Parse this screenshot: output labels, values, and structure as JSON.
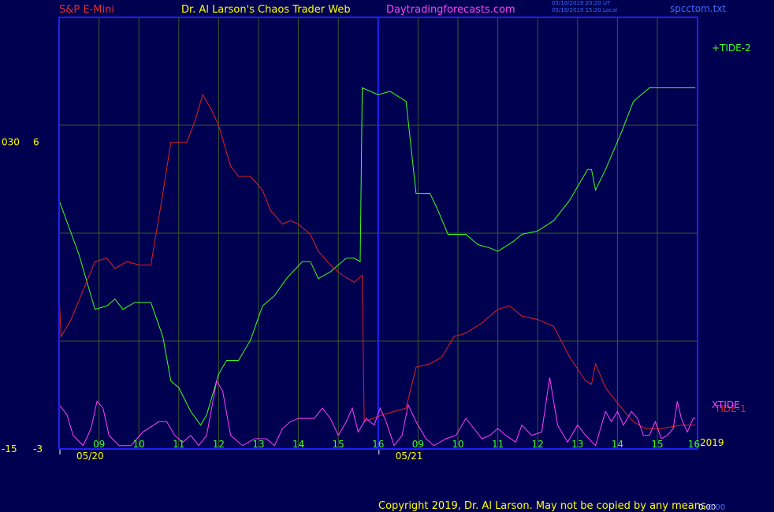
{
  "header": {
    "symbol": "S&P E-Mini",
    "site_title": "Dr. Al Larson's Chaos Trader Web",
    "site_url": "Daytradingforecasts.com",
    "timestamp_ut": "05/18/2019 20:20 UT",
    "timestamp_local": "05/18/2019 15:20 Local",
    "file_name": "spcctom.txt"
  },
  "footer": {
    "copyright": "Copyright 2019, Dr. Al Larson. May not be copied by any means",
    "tag_white": "0.00",
    "tag_blue": "0.00"
  },
  "colors": {
    "background": "#000050",
    "frame": "#2020ff",
    "grid": "#3a5a28",
    "symbol_text": "#e03030",
    "site_title_text": "#ffff00",
    "site_url_text": "#ff40ff",
    "tide1": "#e02020",
    "tide2": "#40ff20",
    "xtide": "#ff40ff",
    "hour_labels": "#40ff20",
    "yellow_labels": "#ffff00"
  },
  "chart_data": {
    "type": "line",
    "y_axis_left_labels": [
      {
        "outer": "030",
        "inner": "6",
        "value": 6
      },
      {
        "outer": "-15",
        "inner": "-3",
        "value": -3
      }
    ],
    "ylim": [
      -3,
      9.67
    ],
    "x_hour_labels": [
      "09",
      "10",
      "11",
      "12",
      "13",
      "14",
      "15",
      "16",
      "09",
      "10",
      "11",
      "12",
      "13",
      "14",
      "15",
      "16"
    ],
    "date_labels": [
      {
        "label": "05/20",
        "hour_index": 0
      },
      {
        "label": "05/21",
        "hour_index": 8
      }
    ],
    "year_label": "2019",
    "session_break_hour_index": 8,
    "series": [
      {
        "name": "+TIDE-2",
        "key": "tide2",
        "points": [
          [
            0,
            4.3
          ],
          [
            0.5,
            2.7
          ],
          [
            0.9,
            1.1
          ],
          [
            1.2,
            1.2
          ],
          [
            1.4,
            1.4
          ],
          [
            1.6,
            1.1
          ],
          [
            1.9,
            1.3
          ],
          [
            2.3,
            1.3
          ],
          [
            2.6,
            0.3
          ],
          [
            2.8,
            -1
          ],
          [
            3.0,
            -1.2
          ],
          [
            3.3,
            -1.9
          ],
          [
            3.55,
            -2.3
          ],
          [
            3.7,
            -2.0
          ],
          [
            4.0,
            -0.8
          ],
          [
            4.2,
            -0.4
          ],
          [
            4.5,
            -0.4
          ],
          [
            4.8,
            0.2
          ],
          [
            5.1,
            1.2
          ],
          [
            5.4,
            1.5
          ],
          [
            5.7,
            2.0
          ],
          [
            6.1,
            2.5
          ],
          [
            6.3,
            2.5
          ],
          [
            6.5,
            2.0
          ],
          [
            6.8,
            2.2
          ],
          [
            7.2,
            2.6
          ],
          [
            7.4,
            2.6
          ],
          [
            7.55,
            2.5
          ],
          [
            7.6,
            7.6
          ],
          [
            8.0,
            7.4
          ],
          [
            8.3,
            7.5
          ],
          [
            8.7,
            7.2
          ],
          [
            8.95,
            4.5
          ],
          [
            9.3,
            4.5
          ],
          [
            9.5,
            4.0
          ],
          [
            9.75,
            3.3
          ],
          [
            10.2,
            3.3
          ],
          [
            10.5,
            3.0
          ],
          [
            10.8,
            2.9
          ],
          [
            11.0,
            2.8
          ],
          [
            11.4,
            3.1
          ],
          [
            11.6,
            3.3
          ],
          [
            12.0,
            3.4
          ],
          [
            12.4,
            3.7
          ],
          [
            12.8,
            4.3
          ],
          [
            13.25,
            5.2
          ],
          [
            13.35,
            5.2
          ],
          [
            13.45,
            4.6
          ],
          [
            13.7,
            5.2
          ],
          [
            14.1,
            6.3
          ],
          [
            14.4,
            7.2
          ],
          [
            14.8,
            7.6
          ],
          [
            15.2,
            7.6
          ],
          [
            15.6,
            7.6
          ],
          [
            15.95,
            7.6
          ]
        ]
      },
      {
        "name": "TIDE-1",
        "key": "tide1",
        "points": [
          [
            0,
            1.5
          ],
          [
            0.05,
            0.3
          ],
          [
            0.3,
            0.8
          ],
          [
            0.9,
            2.5
          ],
          [
            1.2,
            2.6
          ],
          [
            1.4,
            2.3
          ],
          [
            1.7,
            2.5
          ],
          [
            2.0,
            2.4
          ],
          [
            2.3,
            2.4
          ],
          [
            2.6,
            4.5
          ],
          [
            2.8,
            6.0
          ],
          [
            3.0,
            6.0
          ],
          [
            3.2,
            6.0
          ],
          [
            3.4,
            6.6
          ],
          [
            3.6,
            7.4
          ],
          [
            3.8,
            7.0
          ],
          [
            4.0,
            6.5
          ],
          [
            4.3,
            5.3
          ],
          [
            4.5,
            5.0
          ],
          [
            4.8,
            5.0
          ],
          [
            5.1,
            4.6
          ],
          [
            5.3,
            4.0
          ],
          [
            5.6,
            3.6
          ],
          [
            5.8,
            3.7
          ],
          [
            6.0,
            3.6
          ],
          [
            6.3,
            3.3
          ],
          [
            6.5,
            2.8
          ],
          [
            6.8,
            2.4
          ],
          [
            7.1,
            2.1
          ],
          [
            7.4,
            1.9
          ],
          [
            7.6,
            2.1
          ],
          [
            7.65,
            -2.2
          ],
          [
            8.1,
            -2.0
          ],
          [
            8.4,
            -1.9
          ],
          [
            8.7,
            -1.8
          ],
          [
            8.95,
            -0.6
          ],
          [
            9.3,
            -0.5
          ],
          [
            9.6,
            -0.3
          ],
          [
            9.9,
            0.3
          ],
          [
            10.2,
            0.4
          ],
          [
            10.6,
            0.7
          ],
          [
            11.0,
            1.1
          ],
          [
            11.3,
            1.2
          ],
          [
            11.6,
            0.9
          ],
          [
            12.0,
            0.8
          ],
          [
            12.4,
            0.6
          ],
          [
            12.8,
            -0.3
          ],
          [
            13.2,
            -1.0
          ],
          [
            13.35,
            -1.1
          ],
          [
            13.45,
            -0.5
          ],
          [
            13.7,
            -1.2
          ],
          [
            14.1,
            -1.8
          ],
          [
            14.4,
            -2.2
          ],
          [
            14.7,
            -2.4
          ],
          [
            15.1,
            -2.4
          ],
          [
            15.6,
            -2.3
          ],
          [
            15.95,
            -2.3
          ]
        ]
      },
      {
        "name": "XTIDE",
        "key": "xtide",
        "points": [
          [
            0,
            -1.7
          ],
          [
            0.2,
            -2.0
          ],
          [
            0.35,
            -2.6
          ],
          [
            0.6,
            -2.9
          ],
          [
            0.8,
            -2.4
          ],
          [
            0.95,
            -1.6
          ],
          [
            1.1,
            -1.8
          ],
          [
            1.25,
            -2.6
          ],
          [
            1.5,
            -2.9
          ],
          [
            1.8,
            -2.9
          ],
          [
            2.1,
            -2.5
          ],
          [
            2.5,
            -2.2
          ],
          [
            2.7,
            -2.2
          ],
          [
            2.9,
            -2.6
          ],
          [
            3.1,
            -2.8
          ],
          [
            3.3,
            -2.6
          ],
          [
            3.5,
            -2.9
          ],
          [
            3.7,
            -2.6
          ],
          [
            3.95,
            -1.0
          ],
          [
            4.1,
            -1.3
          ],
          [
            4.3,
            -2.6
          ],
          [
            4.6,
            -2.9
          ],
          [
            4.9,
            -2.7
          ],
          [
            5.2,
            -2.7
          ],
          [
            5.4,
            -2.9
          ],
          [
            5.6,
            -2.4
          ],
          [
            5.8,
            -2.2
          ],
          [
            6.0,
            -2.1
          ],
          [
            6.2,
            -2.1
          ],
          [
            6.4,
            -2.1
          ],
          [
            6.6,
            -1.8
          ],
          [
            6.8,
            -2.1
          ],
          [
            7.0,
            -2.6
          ],
          [
            7.2,
            -2.2
          ],
          [
            7.35,
            -1.8
          ],
          [
            7.5,
            -2.5
          ],
          [
            7.7,
            -2.1
          ],
          [
            7.9,
            -2.3
          ],
          [
            8.05,
            -1.8
          ],
          [
            8.2,
            -2.2
          ],
          [
            8.4,
            -2.9
          ],
          [
            8.6,
            -2.6
          ],
          [
            8.75,
            -1.7
          ],
          [
            8.95,
            -2.2
          ],
          [
            9.2,
            -2.7
          ],
          [
            9.4,
            -2.9
          ],
          [
            9.7,
            -2.7
          ],
          [
            9.95,
            -2.6
          ],
          [
            10.2,
            -2.1
          ],
          [
            10.4,
            -2.4
          ],
          [
            10.6,
            -2.7
          ],
          [
            10.8,
            -2.6
          ],
          [
            11.0,
            -2.4
          ],
          [
            11.2,
            -2.6
          ],
          [
            11.45,
            -2.8
          ],
          [
            11.6,
            -2.3
          ],
          [
            11.85,
            -2.6
          ],
          [
            12.1,
            -2.5
          ],
          [
            12.3,
            -0.9
          ],
          [
            12.5,
            -2.3
          ],
          [
            12.75,
            -2.8
          ],
          [
            13.0,
            -2.3
          ],
          [
            13.2,
            -2.6
          ],
          [
            13.45,
            -2.9
          ],
          [
            13.7,
            -1.9
          ],
          [
            13.85,
            -2.2
          ],
          [
            14.0,
            -1.9
          ],
          [
            14.15,
            -2.3
          ],
          [
            14.35,
            -1.9
          ],
          [
            14.5,
            -2.1
          ],
          [
            14.65,
            -2.6
          ],
          [
            14.8,
            -2.6
          ],
          [
            14.95,
            -2.2
          ],
          [
            15.1,
            -2.7
          ],
          [
            15.25,
            -2.6
          ],
          [
            15.4,
            -2.4
          ],
          [
            15.5,
            -1.6
          ],
          [
            15.6,
            -2.1
          ],
          [
            15.75,
            -2.5
          ],
          [
            15.9,
            -2.1
          ],
          [
            15.95,
            -2.1
          ]
        ]
      }
    ]
  }
}
